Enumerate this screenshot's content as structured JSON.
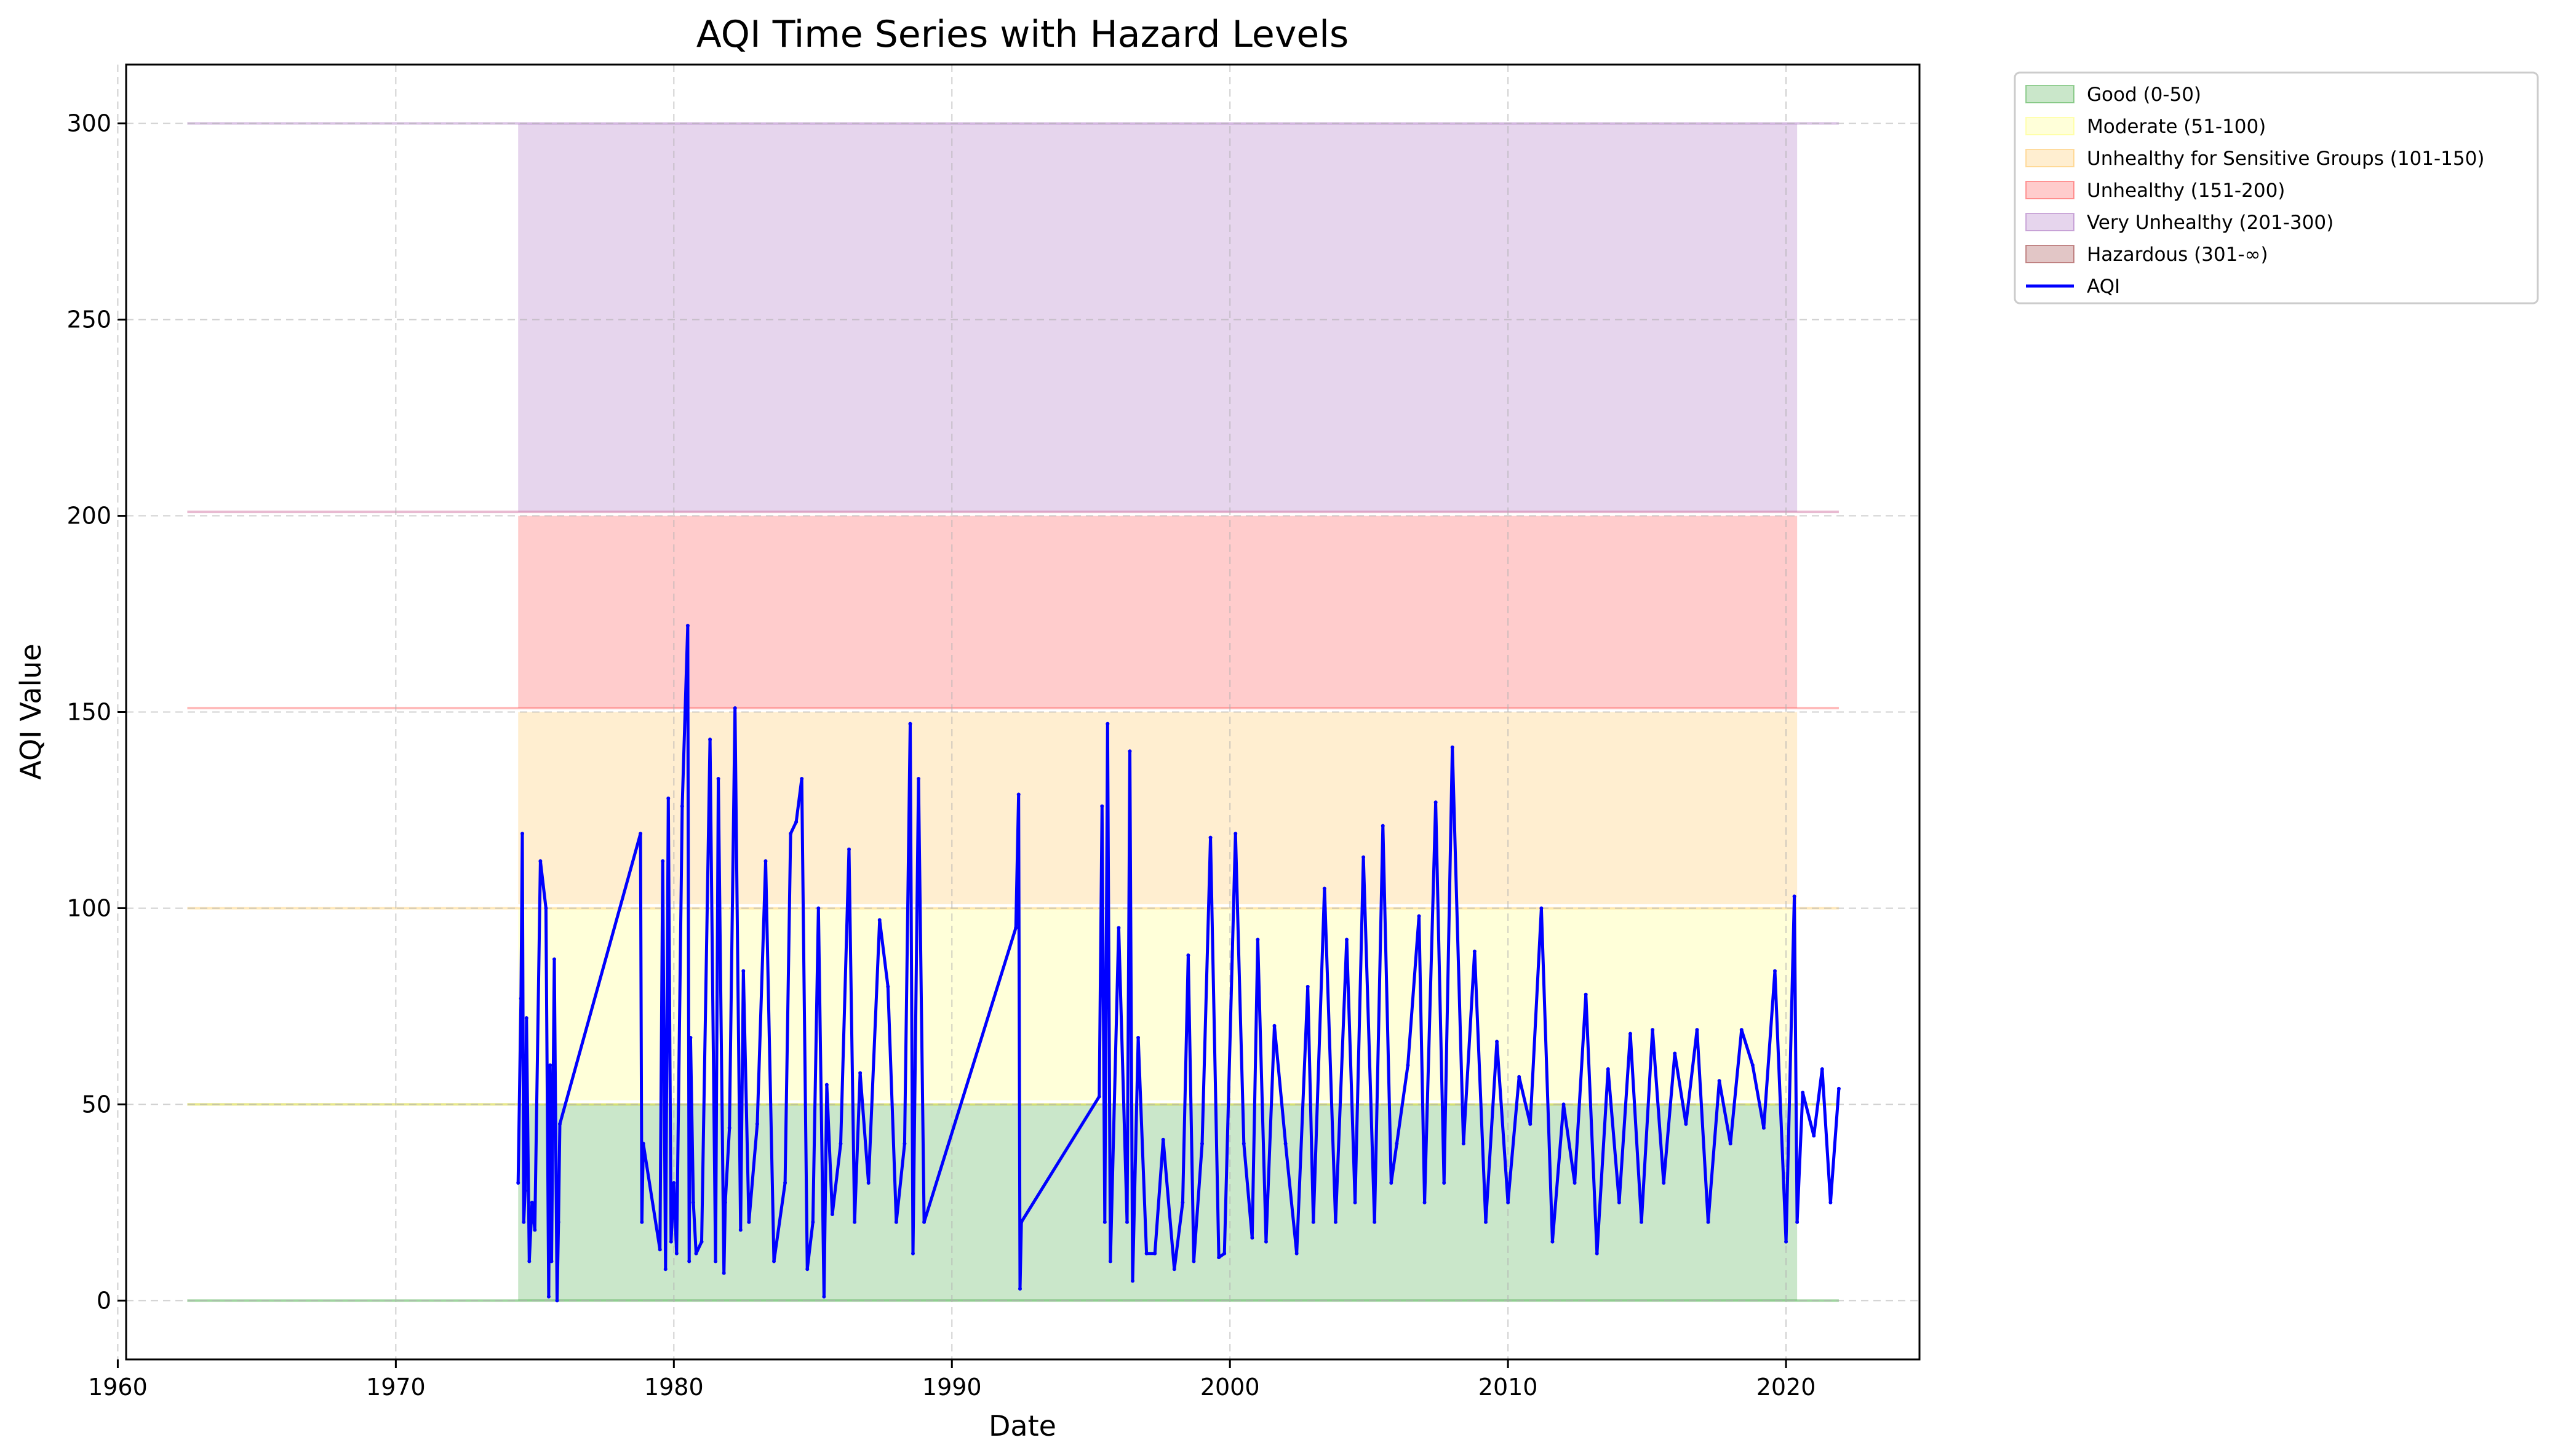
{
  "chart_data": {
    "type": "line",
    "title": "AQI Time Series with Hazard Levels",
    "xlabel": "Date",
    "ylabel": "AQI Value",
    "xlim": [
      1960.3,
      2024.8
    ],
    "ylim": [
      -15,
      315
    ],
    "x_ticks": [
      1960,
      1970,
      1980,
      1990,
      2000,
      2010,
      2020
    ],
    "y_ticks": [
      0,
      50,
      100,
      150,
      200,
      250,
      300
    ],
    "grid": true,
    "legend_position": "outside-top-right",
    "bands": [
      {
        "name": "Good (0-50)",
        "low": 0,
        "high": 50,
        "color": "#2ca02c",
        "x_range": [
          1974.4,
          2020.4
        ]
      },
      {
        "name": "Moderate (51-100)",
        "low": 51,
        "high": 100,
        "color": "#ffff66",
        "x_range": [
          1974.4,
          2020.4
        ]
      },
      {
        "name": "Unhealthy for Sensitive Groups (101-150)",
        "low": 101,
        "high": 150,
        "color": "#ffbb44",
        "x_range": [
          1974.4,
          2020.4
        ]
      },
      {
        "name": "Unhealthy (151-200)",
        "low": 151,
        "high": 200,
        "color": "#ff3333",
        "x_range": [
          1974.4,
          2020.4
        ]
      },
      {
        "name": "Very Unhealthy (201-300)",
        "low": 201,
        "high": 300,
        "color": "#9b59b6",
        "x_range": [
          1974.4,
          2020.4
        ]
      },
      {
        "name": "Hazardous (301-∞)",
        "low": 301,
        "high": 301,
        "color": "#8b1a1a",
        "x_range": [
          1974.4,
          2020.4
        ]
      }
    ],
    "threshold_lines": [
      {
        "y": 0,
        "color": "#2ca02c"
      },
      {
        "y": 50,
        "color": "#cccc00"
      },
      {
        "y": 100,
        "color": "#ffcc66"
      },
      {
        "y": 151,
        "color": "#ff6666"
      },
      {
        "y": 201,
        "color": "#cc6699"
      },
      {
        "y": 300,
        "color": "#b07cc6"
      }
    ],
    "threshold_x_range": [
      1962.5,
      2021.9
    ],
    "series": [
      {
        "name": "AQI",
        "color": "#0000ff",
        "x": [
          1974.4,
          1974.5,
          1974.55,
          1974.6,
          1974.65,
          1974.7,
          1974.8,
          1974.9,
          1975.0,
          1975.2,
          1975.4,
          1975.5,
          1975.55,
          1975.6,
          1975.7,
          1975.8,
          1975.85,
          1975.9,
          1978.8,
          1978.85,
          1978.9,
          1979.5,
          1979.6,
          1979.7,
          1979.8,
          1979.9,
          1980.0,
          1980.1,
          1980.3,
          1980.5,
          1980.55,
          1980.6,
          1980.7,
          1980.8,
          1981.0,
          1981.3,
          1981.5,
          1981.6,
          1981.8,
          1981.85,
          1982.0,
          1982.2,
          1982.4,
          1982.5,
          1982.7,
          1983.0,
          1983.3,
          1983.6,
          1984.0,
          1984.2,
          1984.4,
          1984.6,
          1984.8,
          1985.0,
          1985.2,
          1985.4,
          1985.5,
          1985.7,
          1986.0,
          1986.3,
          1986.5,
          1986.7,
          1987.0,
          1987.4,
          1987.7,
          1988.0,
          1988.3,
          1988.5,
          1988.6,
          1988.8,
          1989.0,
          1992.3,
          1992.4,
          1992.45,
          1992.5,
          1995.3,
          1995.4,
          1995.5,
          1995.6,
          1995.7,
          1996.0,
          1996.3,
          1996.4,
          1996.5,
          1996.7,
          1997.0,
          1997.3,
          1997.6,
          1998.0,
          1998.3,
          1998.5,
          1998.7,
          1999.0,
          1999.3,
          1999.6,
          1999.8,
          2000.2,
          2000.5,
          2000.8,
          2001.0,
          2001.3,
          2001.6,
          2002.0,
          2002.4,
          2002.8,
          2003.0,
          2003.4,
          2003.8,
          2004.2,
          2004.5,
          2004.8,
          2005.2,
          2005.5,
          2005.8,
          2006.0,
          2006.4,
          2006.8,
          2007.0,
          2007.4,
          2007.7,
          2008.0,
          2008.4,
          2008.8,
          2009.2,
          2009.6,
          2010.0,
          2010.4,
          2010.8,
          2011.2,
          2011.6,
          2012.0,
          2012.4,
          2012.8,
          2013.2,
          2013.6,
          2014.0,
          2014.4,
          2014.8,
          2015.2,
          2015.6,
          2016.0,
          2016.4,
          2016.8,
          2017.2,
          2017.6,
          2018.0,
          2018.4,
          2018.8,
          2019.2,
          2019.6,
          2020.0,
          2020.3,
          2020.4,
          2020.6,
          2021.0,
          2021.3,
          2021.6,
          2021.9
        ],
        "values": [
          30,
          77,
          119,
          20,
          28,
          72,
          10,
          25,
          18,
          112,
          100,
          1,
          60,
          10,
          87,
          0,
          20,
          45,
          119,
          20,
          40,
          13,
          112,
          8,
          128,
          15,
          30,
          12,
          126,
          172,
          10,
          67,
          25,
          12,
          15,
          143,
          10,
          133,
          7,
          25,
          44,
          151,
          18,
          84,
          20,
          45,
          112,
          10,
          30,
          119,
          122,
          133,
          8,
          20,
          100,
          1,
          55,
          22,
          40,
          115,
          20,
          58,
          30,
          97,
          80,
          20,
          40,
          147,
          12,
          133,
          20,
          95,
          129,
          3,
          20,
          52,
          126,
          20,
          147,
          10,
          95,
          20,
          140,
          5,
          67,
          12,
          12,
          41,
          8,
          25,
          88,
          10,
          40,
          118,
          11,
          12,
          119,
          40,
          16,
          92,
          15,
          70,
          40,
          12,
          80,
          20,
          105,
          20,
          92,
          25,
          113,
          20,
          121,
          30,
          40,
          60,
          98,
          25,
          127,
          30,
          141,
          40,
          89,
          20,
          66,
          25,
          57,
          45,
          100,
          15,
          50,
          30,
          78,
          12,
          59,
          25,
          68,
          20,
          69,
          30,
          63,
          45,
          69,
          20,
          56,
          40,
          69,
          60,
          44,
          84,
          15,
          103,
          20,
          53,
          42,
          59,
          25,
          54
        ]
      }
    ]
  }
}
